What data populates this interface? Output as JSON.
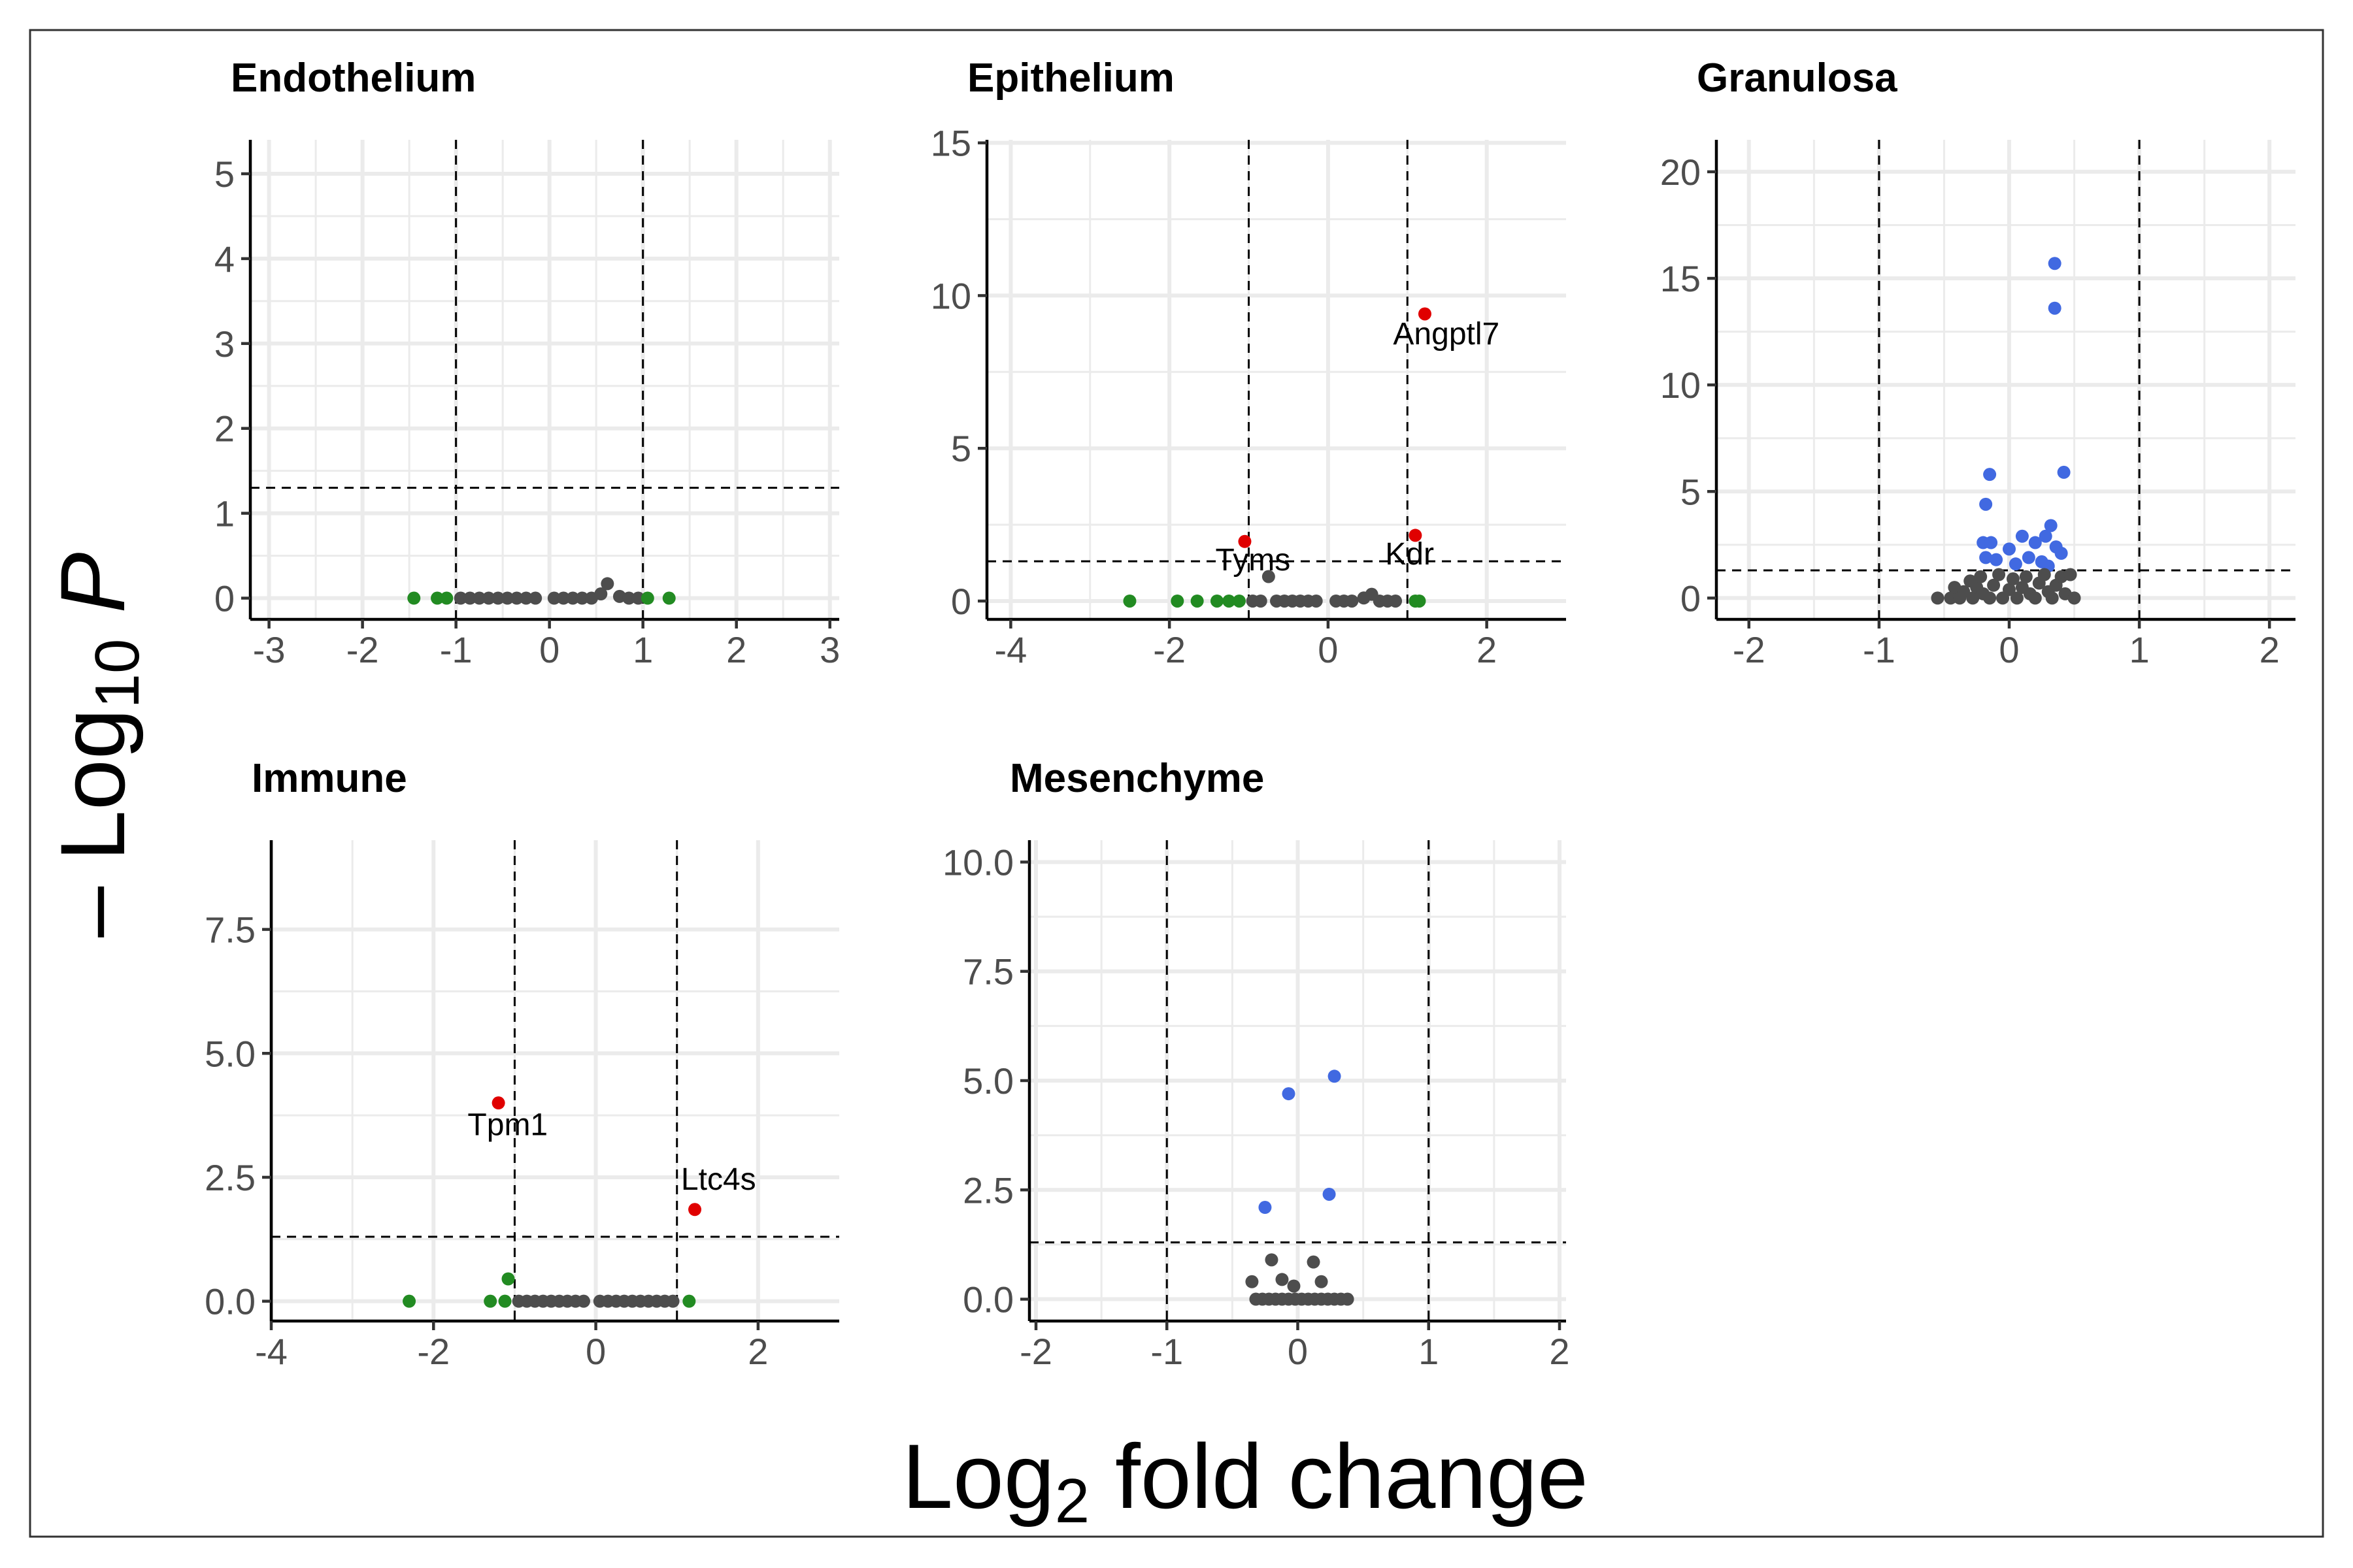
{
  "figure": {
    "ylabel_prefix": "– Log",
    "ylabel_sub": "10",
    "ylabel_suffix": " P",
    "xlabel_prefix": "Log",
    "xlabel_sub": "2",
    "xlabel_suffix": " fold change"
  },
  "colors": {
    "ns": "#4d4d4d",
    "log2fc": "#228b22",
    "p": "#4169e1",
    "p_and_log2fc": "#e00000",
    "grid": "#ebebeb",
    "border": "#333333"
  },
  "chart_data": [
    {
      "type": "scatter",
      "title": "Endothelium",
      "xlim": [
        -3.2,
        3.1
      ],
      "ylim": [
        -0.25,
        5.4
      ],
      "xticks": [
        -3,
        -2,
        -1,
        0,
        1,
        2,
        3
      ],
      "xtick_labels": [
        "-3",
        "-2",
        "-1",
        "0",
        "1",
        "2",
        "3"
      ],
      "yticks": [
        0,
        1,
        2,
        3,
        4,
        5
      ],
      "ytick_labels": [
        "0",
        "1",
        "2",
        "3",
        "4",
        "5"
      ],
      "fc_cutoff": 1,
      "p_cutoff": 1.3,
      "points": [
        {
          "x": -1.45,
          "y": 0,
          "g": "log2fc"
        },
        {
          "x": -1.2,
          "y": 0,
          "g": "log2fc"
        },
        {
          "x": -1.1,
          "y": 0,
          "g": "log2fc"
        },
        {
          "x": -0.95,
          "y": 0,
          "g": "ns"
        },
        {
          "x": -0.85,
          "y": 0,
          "g": "ns"
        },
        {
          "x": -0.75,
          "y": 0,
          "g": "ns"
        },
        {
          "x": -0.65,
          "y": 0,
          "g": "ns"
        },
        {
          "x": -0.55,
          "y": 0,
          "g": "ns"
        },
        {
          "x": -0.45,
          "y": 0,
          "g": "ns"
        },
        {
          "x": -0.35,
          "y": 0,
          "g": "ns"
        },
        {
          "x": -0.25,
          "y": 0,
          "g": "ns"
        },
        {
          "x": -0.15,
          "y": 0,
          "g": "ns"
        },
        {
          "x": 0.05,
          "y": 0,
          "g": "ns"
        },
        {
          "x": 0.15,
          "y": 0,
          "g": "ns"
        },
        {
          "x": 0.25,
          "y": 0,
          "g": "ns"
        },
        {
          "x": 0.35,
          "y": 0,
          "g": "ns"
        },
        {
          "x": 0.45,
          "y": 0,
          "g": "ns"
        },
        {
          "x": 0.55,
          "y": 0.05,
          "g": "ns"
        },
        {
          "x": 0.62,
          "y": 0.17,
          "g": "ns"
        },
        {
          "x": 0.75,
          "y": 0.02,
          "g": "ns"
        },
        {
          "x": 0.85,
          "y": 0,
          "g": "ns"
        },
        {
          "x": 0.95,
          "y": 0,
          "g": "ns"
        },
        {
          "x": 1.05,
          "y": 0,
          "g": "log2fc"
        },
        {
          "x": 1.28,
          "y": 0,
          "g": "log2fc"
        }
      ],
      "labels": []
    },
    {
      "type": "scatter",
      "title": "Epithelium",
      "xlim": [
        -4.3,
        3.0
      ],
      "ylim": [
        -0.6,
        15.1
      ],
      "xticks": [
        -4,
        -2,
        0,
        2
      ],
      "xtick_labels": [
        "-4",
        "-2",
        "0",
        "2"
      ],
      "yticks": [
        0,
        5,
        10,
        15
      ],
      "ytick_labels": [
        "0",
        "5",
        "10",
        "15"
      ],
      "fc_cutoff": 1,
      "p_cutoff": 1.3,
      "points": [
        {
          "x": -2.5,
          "y": 0,
          "g": "log2fc"
        },
        {
          "x": -1.9,
          "y": 0,
          "g": "log2fc"
        },
        {
          "x": -1.65,
          "y": 0,
          "g": "log2fc"
        },
        {
          "x": -1.4,
          "y": 0,
          "g": "log2fc"
        },
        {
          "x": -1.25,
          "y": 0,
          "g": "log2fc"
        },
        {
          "x": -1.12,
          "y": 0,
          "g": "log2fc"
        },
        {
          "x": -1.05,
          "y": 1.95,
          "g": "p_and_log2fc"
        },
        {
          "x": -0.95,
          "y": 0,
          "g": "ns"
        },
        {
          "x": -0.85,
          "y": 0,
          "g": "ns"
        },
        {
          "x": -0.75,
          "y": 0.8,
          "g": "ns"
        },
        {
          "x": -0.65,
          "y": 0,
          "g": "ns"
        },
        {
          "x": -0.55,
          "y": 0,
          "g": "ns"
        },
        {
          "x": -0.45,
          "y": 0,
          "g": "ns"
        },
        {
          "x": -0.35,
          "y": 0,
          "g": "ns"
        },
        {
          "x": -0.25,
          "y": 0,
          "g": "ns"
        },
        {
          "x": -0.15,
          "y": 0,
          "g": "ns"
        },
        {
          "x": 0.1,
          "y": 0,
          "g": "ns"
        },
        {
          "x": 0.2,
          "y": 0,
          "g": "ns"
        },
        {
          "x": 0.3,
          "y": 0,
          "g": "ns"
        },
        {
          "x": 0.45,
          "y": 0.1,
          "g": "ns"
        },
        {
          "x": 0.55,
          "y": 0.22,
          "g": "ns"
        },
        {
          "x": 0.65,
          "y": 0,
          "g": "ns"
        },
        {
          "x": 0.75,
          "y": 0,
          "g": "ns"
        },
        {
          "x": 0.85,
          "y": 0,
          "g": "ns"
        },
        {
          "x": 1.1,
          "y": 0,
          "g": "log2fc"
        },
        {
          "x": 1.15,
          "y": 0,
          "g": "log2fc"
        },
        {
          "x": 1.1,
          "y": 2.15,
          "g": "p_and_log2fc"
        },
        {
          "x": 1.22,
          "y": 9.4,
          "g": "p_and_log2fc"
        }
      ],
      "labels": [
        {
          "text": "Angptl7",
          "x": 0.82,
          "y": 8.4
        },
        {
          "text": "Tyms",
          "x": -1.42,
          "y": 1.0
        },
        {
          "text": "Kdr",
          "x": 0.72,
          "y": 1.2
        }
      ]
    },
    {
      "type": "scatter",
      "title": "Granulosa",
      "xlim": [
        -2.25,
        2.2
      ],
      "ylim": [
        -1.0,
        21.5
      ],
      "xticks": [
        -2,
        -1,
        0,
        1,
        2
      ],
      "xtick_labels": [
        "-2",
        "-1",
        "0",
        "1",
        "2"
      ],
      "yticks": [
        0,
        5,
        10,
        15,
        20
      ],
      "ytick_labels": [
        "0",
        "5",
        "10",
        "15",
        "20"
      ],
      "fc_cutoff": 1,
      "p_cutoff": 1.3,
      "points": [
        {
          "x": 0.35,
          "y": 15.7,
          "g": "p"
        },
        {
          "x": 0.35,
          "y": 13.6,
          "g": "p"
        },
        {
          "x": 0.42,
          "y": 5.9,
          "g": "p"
        },
        {
          "x": -0.15,
          "y": 5.8,
          "g": "p"
        },
        {
          "x": -0.18,
          "y": 4.4,
          "g": "p"
        },
        {
          "x": 0.32,
          "y": 3.4,
          "g": "p"
        },
        {
          "x": -0.2,
          "y": 2.6,
          "g": "p"
        },
        {
          "x": -0.14,
          "y": 2.6,
          "g": "p"
        },
        {
          "x": 0.0,
          "y": 2.3,
          "g": "p"
        },
        {
          "x": 0.1,
          "y": 2.9,
          "g": "p"
        },
        {
          "x": 0.2,
          "y": 2.6,
          "g": "p"
        },
        {
          "x": 0.28,
          "y": 2.9,
          "g": "p"
        },
        {
          "x": 0.36,
          "y": 2.4,
          "g": "p"
        },
        {
          "x": 0.4,
          "y": 2.1,
          "g": "p"
        },
        {
          "x": -0.18,
          "y": 1.9,
          "g": "p"
        },
        {
          "x": -0.1,
          "y": 1.8,
          "g": "p"
        },
        {
          "x": 0.15,
          "y": 1.9,
          "g": "p"
        },
        {
          "x": 0.25,
          "y": 1.7,
          "g": "p"
        },
        {
          "x": 0.05,
          "y": 1.6,
          "g": "p"
        },
        {
          "x": 0.3,
          "y": 1.5,
          "g": "p"
        },
        {
          "x": -0.55,
          "y": 0,
          "g": "ns"
        },
        {
          "x": -0.45,
          "y": 0,
          "g": "ns"
        },
        {
          "x": -0.42,
          "y": 0.5,
          "g": "ns"
        },
        {
          "x": -0.38,
          "y": 0,
          "g": "ns"
        },
        {
          "x": -0.35,
          "y": 0.3,
          "g": "ns"
        },
        {
          "x": -0.3,
          "y": 0.8,
          "g": "ns"
        },
        {
          "x": -0.28,
          "y": 0,
          "g": "ns"
        },
        {
          "x": -0.25,
          "y": 0.5,
          "g": "ns"
        },
        {
          "x": -0.22,
          "y": 1.0,
          "g": "ns"
        },
        {
          "x": -0.2,
          "y": 0.2,
          "g": "ns"
        },
        {
          "x": -0.15,
          "y": 0,
          "g": "ns"
        },
        {
          "x": -0.12,
          "y": 0.6,
          "g": "ns"
        },
        {
          "x": -0.08,
          "y": 1.1,
          "g": "ns"
        },
        {
          "x": -0.05,
          "y": 0,
          "g": "ns"
        },
        {
          "x": 0.0,
          "y": 0.4,
          "g": "ns"
        },
        {
          "x": 0.03,
          "y": 0.9,
          "g": "ns"
        },
        {
          "x": 0.06,
          "y": 0,
          "g": "ns"
        },
        {
          "x": 0.1,
          "y": 0.5,
          "g": "ns"
        },
        {
          "x": 0.13,
          "y": 1.0,
          "g": "ns"
        },
        {
          "x": 0.16,
          "y": 0.2,
          "g": "ns"
        },
        {
          "x": 0.2,
          "y": 0,
          "g": "ns"
        },
        {
          "x": 0.23,
          "y": 0.7,
          "g": "ns"
        },
        {
          "x": 0.27,
          "y": 1.1,
          "g": "ns"
        },
        {
          "x": 0.3,
          "y": 0.3,
          "g": "ns"
        },
        {
          "x": 0.33,
          "y": 0,
          "g": "ns"
        },
        {
          "x": 0.36,
          "y": 0.6,
          "g": "ns"
        },
        {
          "x": 0.4,
          "y": 1.0,
          "g": "ns"
        },
        {
          "x": 0.43,
          "y": 0.2,
          "g": "ns"
        },
        {
          "x": 0.47,
          "y": 1.1,
          "g": "ns"
        },
        {
          "x": 0.5,
          "y": 0,
          "g": "ns"
        }
      ],
      "labels": []
    },
    {
      "type": "scatter",
      "title": "Immune",
      "xlim": [
        -4.0,
        3.0
      ],
      "ylim": [
        -0.4,
        9.3
      ],
      "xticks": [
        -4,
        -2,
        0,
        2
      ],
      "xtick_labels": [
        "-4",
        "-2",
        "0",
        "2"
      ],
      "yticks": [
        0,
        2.5,
        5,
        7.5
      ],
      "ytick_labels": [
        "0.0",
        "2.5",
        "5.0",
        "7.5"
      ],
      "fc_cutoff": 1,
      "p_cutoff": 1.3,
      "points": [
        {
          "x": -2.3,
          "y": 0,
          "g": "log2fc"
        },
        {
          "x": -1.3,
          "y": 0,
          "g": "log2fc"
        },
        {
          "x": -1.12,
          "y": 0,
          "g": "log2fc"
        },
        {
          "x": -1.08,
          "y": 0.45,
          "g": "log2fc"
        },
        {
          "x": -1.2,
          "y": 4.0,
          "g": "p_and_log2fc"
        },
        {
          "x": 1.22,
          "y": 1.85,
          "g": "p_and_log2fc"
        },
        {
          "x": -0.95,
          "y": 0,
          "g": "ns"
        },
        {
          "x": -0.85,
          "y": 0,
          "g": "ns"
        },
        {
          "x": -0.75,
          "y": 0,
          "g": "ns"
        },
        {
          "x": -0.65,
          "y": 0,
          "g": "ns"
        },
        {
          "x": -0.55,
          "y": 0,
          "g": "ns"
        },
        {
          "x": -0.45,
          "y": 0,
          "g": "ns"
        },
        {
          "x": -0.35,
          "y": 0,
          "g": "ns"
        },
        {
          "x": -0.25,
          "y": 0,
          "g": "ns"
        },
        {
          "x": -0.15,
          "y": 0,
          "g": "ns"
        },
        {
          "x": 0.05,
          "y": 0,
          "g": "ns"
        },
        {
          "x": 0.15,
          "y": 0,
          "g": "ns"
        },
        {
          "x": 0.25,
          "y": 0,
          "g": "ns"
        },
        {
          "x": 0.35,
          "y": 0,
          "g": "ns"
        },
        {
          "x": 0.45,
          "y": 0,
          "g": "ns"
        },
        {
          "x": 0.55,
          "y": 0,
          "g": "ns"
        },
        {
          "x": 0.65,
          "y": 0,
          "g": "ns"
        },
        {
          "x": 0.75,
          "y": 0,
          "g": "ns"
        },
        {
          "x": 0.85,
          "y": 0,
          "g": "ns"
        },
        {
          "x": 0.95,
          "y": 0,
          "g": "ns"
        },
        {
          "x": 1.15,
          "y": 0,
          "g": "log2fc"
        }
      ],
      "labels": [
        {
          "text": "Tpm1",
          "x": -1.58,
          "y": 3.35
        },
        {
          "text": "Ltc4s",
          "x": 1.05,
          "y": 2.25
        }
      ]
    },
    {
      "type": "scatter",
      "title": "Mesenchyme",
      "xlim": [
        -2.05,
        2.05
      ],
      "ylim": [
        -0.5,
        10.5
      ],
      "xticks": [
        -2,
        -1,
        0,
        1,
        2
      ],
      "xtick_labels": [
        "-2",
        "-1",
        "0",
        "1",
        "2"
      ],
      "yticks": [
        0,
        2.5,
        5,
        7.5,
        10
      ],
      "ytick_labels": [
        "0.0",
        "2.5",
        "5.0",
        "7.5",
        "10.0"
      ],
      "fc_cutoff": 1,
      "p_cutoff": 1.3,
      "points": [
        {
          "x": 0.28,
          "y": 5.1,
          "g": "p"
        },
        {
          "x": -0.07,
          "y": 4.7,
          "g": "p"
        },
        {
          "x": 0.24,
          "y": 2.4,
          "g": "p"
        },
        {
          "x": -0.25,
          "y": 2.1,
          "g": "p"
        },
        {
          "x": -0.35,
          "y": 0.4,
          "g": "ns"
        },
        {
          "x": -0.32,
          "y": 0,
          "g": "ns"
        },
        {
          "x": -0.27,
          "y": 0,
          "g": "ns"
        },
        {
          "x": -0.2,
          "y": 0.9,
          "g": "ns"
        },
        {
          "x": -0.22,
          "y": 0,
          "g": "ns"
        },
        {
          "x": -0.17,
          "y": 0,
          "g": "ns"
        },
        {
          "x": -0.12,
          "y": 0.45,
          "g": "ns"
        },
        {
          "x": -0.12,
          "y": 0,
          "g": "ns"
        },
        {
          "x": -0.07,
          "y": 0,
          "g": "ns"
        },
        {
          "x": -0.03,
          "y": 0.3,
          "g": "ns"
        },
        {
          "x": -0.02,
          "y": 0,
          "g": "ns"
        },
        {
          "x": 0.03,
          "y": 0,
          "g": "ns"
        },
        {
          "x": 0.08,
          "y": 0,
          "g": "ns"
        },
        {
          "x": 0.12,
          "y": 0.85,
          "g": "ns"
        },
        {
          "x": 0.13,
          "y": 0,
          "g": "ns"
        },
        {
          "x": 0.18,
          "y": 0.4,
          "g": "ns"
        },
        {
          "x": 0.18,
          "y": 0,
          "g": "ns"
        },
        {
          "x": 0.23,
          "y": 0,
          "g": "ns"
        },
        {
          "x": 0.28,
          "y": 0,
          "g": "ns"
        },
        {
          "x": 0.33,
          "y": 0,
          "g": "ns"
        },
        {
          "x": 0.38,
          "y": 0,
          "g": "ns"
        }
      ],
      "labels": []
    }
  ]
}
